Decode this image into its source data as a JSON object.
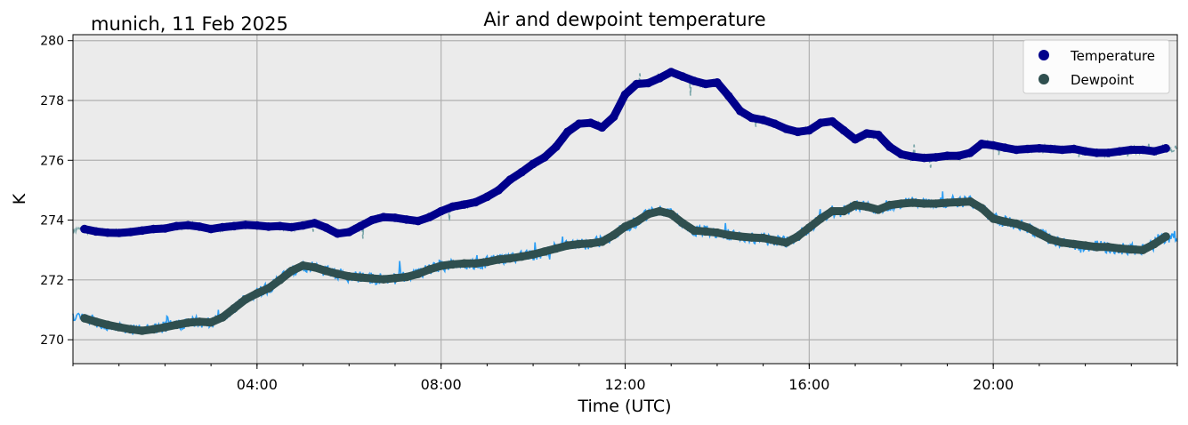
{
  "chart_data": {
    "type": "line",
    "title": "Air and dewpoint temperature",
    "subtitle": "munich, 11 Feb 2025",
    "xlabel": "Time (UTC)",
    "ylabel": "K",
    "xlim": [
      0,
      24
    ],
    "ylim": [
      269.2,
      280.2
    ],
    "x_ticks": [
      4,
      8,
      12,
      16,
      20
    ],
    "x_tick_labels": [
      "04:00",
      "08:00",
      "12:00",
      "16:00",
      "20:00"
    ],
    "y_ticks": [
      270,
      272,
      274,
      276,
      278,
      280
    ],
    "y_tick_labels": [
      "270",
      "272",
      "274",
      "276",
      "278",
      "280"
    ],
    "grid": true,
    "legend_position": "top-right",
    "colors": {
      "temperature": "#00008b",
      "dewpoint": "#2f4f4f",
      "temperature_raw": "#7aa6a9",
      "dewpoint_raw": "#2a9df4",
      "axes_bg": "#ebebeb",
      "grid": "#b0b0b0"
    },
    "series": [
      {
        "name": "Temperature",
        "x": [
          0.25,
          0.5,
          0.75,
          1,
          1.25,
          1.5,
          1.75,
          2,
          2.25,
          2.5,
          2.75,
          3,
          3.25,
          3.5,
          3.75,
          4,
          4.25,
          4.5,
          4.75,
          5,
          5.25,
          5.5,
          5.75,
          6,
          6.25,
          6.5,
          6.75,
          7,
          7.25,
          7.5,
          7.75,
          8,
          8.25,
          8.5,
          8.75,
          9,
          9.25,
          9.5,
          9.75,
          10,
          10.25,
          10.5,
          10.75,
          11,
          11.25,
          11.5,
          11.75,
          12,
          12.25,
          12.5,
          12.75,
          13,
          13.25,
          13.5,
          13.75,
          14,
          14.25,
          14.5,
          14.75,
          15,
          15.25,
          15.5,
          15.75,
          16,
          16.25,
          16.5,
          16.75,
          17,
          17.25,
          17.5,
          17.75,
          18,
          18.25,
          18.5,
          18.75,
          19,
          19.25,
          19.5,
          19.75,
          20,
          20.25,
          20.5,
          20.75,
          21,
          21.25,
          21.5,
          21.75,
          22,
          22.25,
          22.5,
          22.75,
          23,
          23.25,
          23.5,
          23.75
        ],
        "values": [
          273.7,
          273.62,
          273.58,
          273.57,
          273.6,
          273.65,
          273.7,
          273.72,
          273.8,
          273.83,
          273.78,
          273.7,
          273.76,
          273.8,
          273.84,
          273.82,
          273.78,
          273.8,
          273.76,
          273.82,
          273.9,
          273.75,
          273.55,
          273.6,
          273.8,
          274.0,
          274.1,
          274.08,
          274.02,
          273.97,
          274.1,
          274.3,
          274.45,
          274.52,
          274.6,
          274.78,
          275.0,
          275.35,
          275.6,
          275.88,
          276.1,
          276.45,
          276.95,
          277.22,
          277.25,
          277.1,
          277.45,
          278.2,
          278.55,
          278.58,
          278.75,
          278.95,
          278.8,
          278.65,
          278.55,
          278.6,
          278.15,
          277.65,
          277.42,
          277.35,
          277.22,
          277.05,
          276.95,
          277.0,
          277.25,
          277.3,
          277.0,
          276.7,
          276.9,
          276.85,
          276.45,
          276.2,
          276.12,
          276.08,
          276.1,
          276.15,
          276.15,
          276.25,
          276.55,
          276.5,
          276.42,
          276.35,
          276.38,
          276.4,
          276.38,
          276.35,
          276.38,
          276.3,
          276.25,
          276.25,
          276.3,
          276.35,
          276.35,
          276.3,
          276.4
        ]
      },
      {
        "name": "Dewpoint",
        "x": [
          0.25,
          0.5,
          0.75,
          1,
          1.25,
          1.5,
          1.75,
          2,
          2.25,
          2.5,
          2.75,
          3,
          3.25,
          3.5,
          3.75,
          4,
          4.25,
          4.5,
          4.75,
          5,
          5.25,
          5.5,
          5.75,
          6,
          6.25,
          6.5,
          6.75,
          7,
          7.25,
          7.5,
          7.75,
          8,
          8.25,
          8.5,
          8.75,
          9,
          9.25,
          9.5,
          9.75,
          10,
          10.25,
          10.5,
          10.75,
          11,
          11.25,
          11.5,
          11.75,
          12,
          12.25,
          12.5,
          12.75,
          13,
          13.25,
          13.5,
          13.75,
          14,
          14.25,
          14.5,
          14.75,
          15,
          15.25,
          15.5,
          15.75,
          16,
          16.25,
          16.5,
          16.75,
          17,
          17.25,
          17.5,
          17.75,
          18,
          18.25,
          18.5,
          18.75,
          19,
          19.25,
          19.5,
          19.75,
          20,
          20.25,
          20.5,
          20.75,
          21,
          21.25,
          21.5,
          21.75,
          22,
          22.25,
          22.5,
          22.75,
          23,
          23.25,
          23.5,
          23.75
        ],
        "values": [
          270.72,
          270.6,
          270.5,
          270.42,
          270.35,
          270.3,
          270.35,
          270.42,
          270.5,
          270.57,
          270.6,
          270.58,
          270.75,
          271.05,
          271.35,
          271.55,
          271.72,
          272.0,
          272.3,
          272.48,
          272.42,
          272.3,
          272.2,
          272.12,
          272.08,
          272.05,
          272.02,
          272.06,
          272.1,
          272.2,
          272.35,
          272.47,
          272.52,
          272.55,
          272.55,
          272.6,
          272.68,
          272.72,
          272.78,
          272.85,
          272.95,
          273.05,
          273.15,
          273.2,
          273.22,
          273.28,
          273.5,
          273.78,
          273.95,
          274.2,
          274.3,
          274.2,
          273.9,
          273.65,
          273.62,
          273.58,
          273.5,
          273.45,
          273.42,
          273.4,
          273.32,
          273.25,
          273.45,
          273.75,
          274.05,
          274.3,
          274.3,
          274.5,
          274.45,
          274.35,
          274.5,
          274.55,
          274.58,
          274.55,
          274.55,
          274.58,
          274.6,
          274.62,
          274.4,
          274.05,
          273.95,
          273.88,
          273.75,
          273.55,
          273.35,
          273.25,
          273.2,
          273.15,
          273.1,
          273.1,
          273.05,
          273.02,
          273.0,
          273.2,
          273.45
        ]
      }
    ]
  },
  "legend": {
    "items": [
      {
        "label": "Temperature"
      },
      {
        "label": "Dewpoint"
      }
    ]
  }
}
